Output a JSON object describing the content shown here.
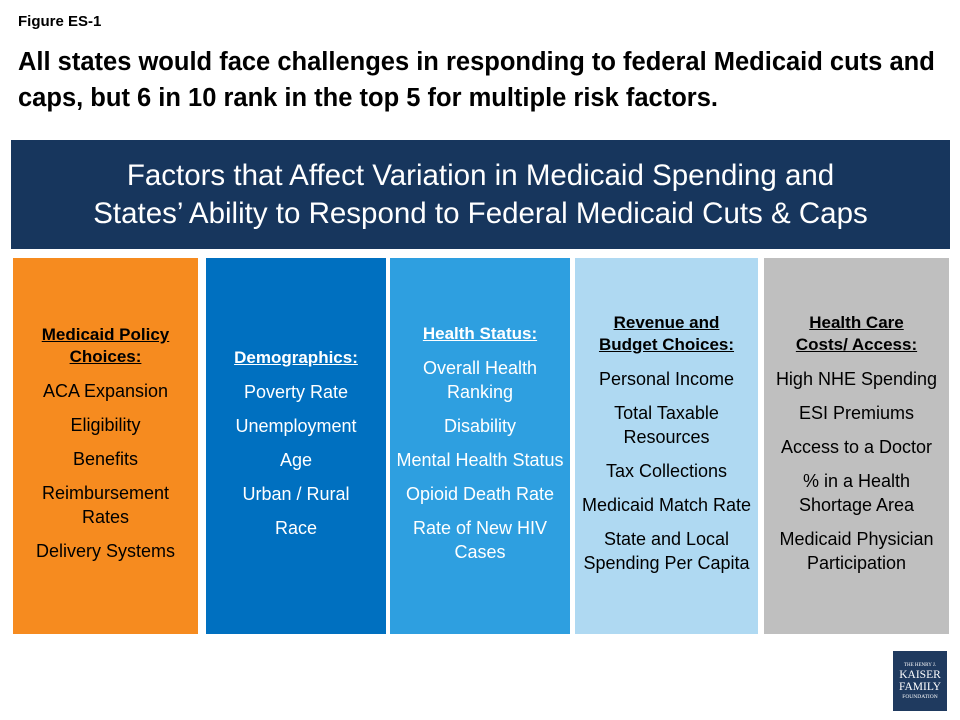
{
  "figure_label": "Figure ES-1",
  "headline": "All states would face challenges in responding to federal Medicaid cuts and caps, but 6 in 10 rank in the top 5 for multiple risk factors.",
  "banner": {
    "line1": "Factors that Affect Variation in Medicaid Spending and",
    "line2": "States’ Ability to Respond to Federal Medicaid Cuts & Caps"
  },
  "columns": [
    {
      "head_lines": [
        "Medicaid Policy",
        "Choices:"
      ],
      "items": [
        "ACA Expansion",
        "Eligibility",
        "Benefits",
        "Reimbursement Rates",
        "Delivery Systems"
      ]
    },
    {
      "head_lines": [
        "Demographics:"
      ],
      "items": [
        "Poverty Rate",
        "Unemployment",
        "Age",
        "Urban / Rural",
        "Race"
      ]
    },
    {
      "head_lines": [
        "Health Status:"
      ],
      "items": [
        "Overall Health Ranking",
        "Disability",
        "Mental Health Status",
        "Opioid Death Rate",
        "Rate of New HIV Cases"
      ]
    },
    {
      "head_lines": [
        "Revenue and",
        "Budget Choices:"
      ],
      "items": [
        "Personal Income",
        "Total Taxable Resources",
        "Tax Collections",
        "Medicaid Match Rate",
        "State and Local Spending Per Capita"
      ]
    },
    {
      "head_lines": [
        "Health Care",
        "Costs/ Access:"
      ],
      "items": [
        "High NHE Spending",
        "ESI Premiums",
        "Access to a Doctor",
        "% in a Health Shortage Area",
        "Medicaid Physician Participation"
      ]
    }
  ],
  "logo": {
    "line1": "THE HENRY J.",
    "line2": "KAISER",
    "line3": "FAMILY",
    "line4": "FOUNDATION"
  }
}
